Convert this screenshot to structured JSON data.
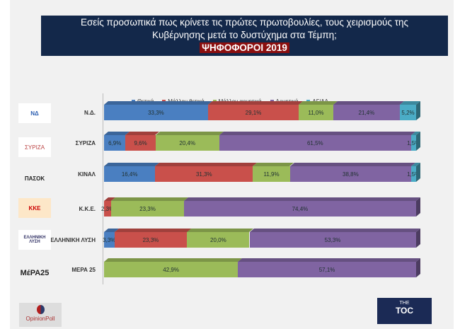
{
  "title": {
    "line1": "Εσείς προσωπικά πως κρίνετε τις πρώτες πρωτοβουλίες, τους χειρισμούς της",
    "line2": "Κυβέρνησης μετά το δυστύχημα στα Τέμπη;",
    "subtitle": "ΨΗΦΟΦΟΡΟΙ 2019"
  },
  "chart_data": {
    "type": "bar",
    "stacked": true,
    "orientation": "horizontal",
    "xlim": [
      0,
      100
    ],
    "categories": [
      "Ν.Δ.",
      "ΣΥΡΙΖΑ",
      "ΚΙΝΑΛ",
      "Κ.Κ.Ε.",
      "ΕΛΛΗΝΙΚΗ ΛΥΣΗ",
      "ΜΕΡΑ 25"
    ],
    "legend_position": "top",
    "series": [
      {
        "name": "Θετικά",
        "color": "#4a7fc1",
        "values": [
          33.3,
          6.9,
          16.4,
          0,
          3.3,
          0
        ]
      },
      {
        "name": "Μάλλον θετικά",
        "color": "#c9504b",
        "values": [
          29.1,
          9.6,
          31.3,
          2.3,
          23.3,
          0
        ]
      },
      {
        "name": "Μάλλον αρνητικά",
        "color": "#9bbb59",
        "values": [
          11.0,
          20.4,
          11.9,
          23.3,
          20.0,
          42.9
        ]
      },
      {
        "name": "Αρνητικά",
        "color": "#8064a2",
        "values": [
          21.4,
          61.5,
          38.8,
          74.4,
          53.3,
          57.1
        ]
      },
      {
        "name": "ΔΓ/ΔΑ",
        "color": "#4bacc6",
        "values": [
          5.2,
          1.5,
          1.5,
          0,
          0,
          0
        ]
      }
    ]
  },
  "logos": {
    "nd": "ΝΔ ΝΕΑ ΔΗΜΟΚΡΑΤΙΑ",
    "syriza": "ΣΥΡΙΖΑ",
    "pasok": "ΠΑΣΟΚ Κίνημα Αλλαγής",
    "kke": "ΚΚΕ",
    "el": "ΕΛΛΗΝΙΚΗ ΛΥΣΗ",
    "mera": "ΜέΡΑ25",
    "opinionpoll": "OpinionPoll",
    "toc_top": "THE",
    "toc": "TOC"
  }
}
